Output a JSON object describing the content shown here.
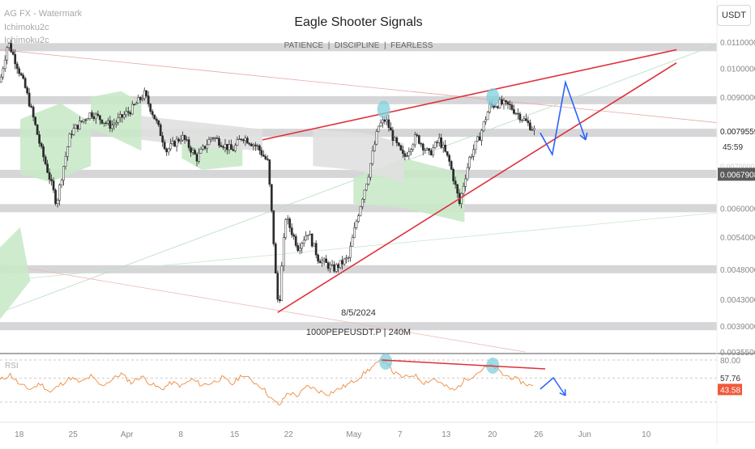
{
  "overlay": {
    "indicators": [
      "AG FX - Watermark",
      "Ichimoku2c",
      "Ichimoku2c"
    ],
    "title": "Eagle Shooter Signals",
    "subtitle": "PATIENCE  |  DISCIPLINE  |  FEARLESS",
    "date_label": "8/5/2024",
    "symbol_label": "1000PEPEUSDT.P | 240M",
    "currency_button": "USDT",
    "countdown": "45:59",
    "rsi_label": "RSI"
  },
  "colors": {
    "candle": "#2b2b2b",
    "trend": "#e0303a",
    "projection": "#2962ff",
    "zone": "#cfcfd1",
    "cloud": "#c9e9c9",
    "cloud_grey": "#e0e0e0",
    "circle": "#7fd0dc",
    "rsi": "#f08a3c",
    "price_tag": "#5b5b5b",
    "rsi_tag": "#f0593a"
  },
  "chart_data": [
    {
      "type": "candlestick",
      "title": "Eagle Shooter Signals",
      "subtitle": "PATIENCE  |  DISCIPLINE  |  FEARLESS",
      "symbol": "1000PEPEUSDT.P | 240M",
      "ylim": [
        0.00355,
        0.0114
      ],
      "y_ticks": [
        "0.0110000",
        "0.0100000",
        "0.0090000",
        "0.0079559",
        "0.0070000",
        "0.0067908",
        "0.0060000",
        "0.0054000",
        "0.0048000",
        "0.0043000",
        "0.0039000",
        "0.0035500"
      ],
      "x_ticks": [
        "18",
        "25",
        "Apr",
        "8",
        "15",
        "22",
        "May",
        "7",
        "13",
        "20",
        "26",
        "Jun",
        "10"
      ],
      "last_price": "0.0079559",
      "marked_price": "0.0067908",
      "zones": [
        0.0108,
        0.0089,
        0.0079,
        0.0068,
        0.006,
        0.0048,
        0.0039
      ],
      "price_path": [
        {
          "t": 0,
          "p": 0.0095
        },
        {
          "t": 0.8,
          "p": 0.011
        },
        {
          "t": 2.5,
          "p": 0.0093
        },
        {
          "t": 4,
          "p": 0.0075
        },
        {
          "t": 5.6,
          "p": 0.0061
        },
        {
          "t": 7,
          "p": 0.0079
        },
        {
          "t": 9,
          "p": 0.0085
        },
        {
          "t": 11,
          "p": 0.0081
        },
        {
          "t": 13,
          "p": 0.0086
        },
        {
          "t": 14.3,
          "p": 0.0091
        },
        {
          "t": 15.5,
          "p": 0.0082
        },
        {
          "t": 16.5,
          "p": 0.0074
        },
        {
          "t": 18,
          "p": 0.0078
        },
        {
          "t": 19.5,
          "p": 0.0072
        },
        {
          "t": 21,
          "p": 0.0078
        },
        {
          "t": 23,
          "p": 0.0074
        },
        {
          "t": 24,
          "p": 0.0078
        },
        {
          "t": 25.5,
          "p": 0.0075
        },
        {
          "t": 26.5,
          "p": 0.0071
        },
        {
          "t": 27.3,
          "p": 0.0047
        },
        {
          "t": 27.6,
          "p": 0.0041
        },
        {
          "t": 28.3,
          "p": 0.0058
        },
        {
          "t": 29.5,
          "p": 0.0052
        },
        {
          "t": 30.5,
          "p": 0.0055
        },
        {
          "t": 31.5,
          "p": 0.005
        },
        {
          "t": 33,
          "p": 0.0048
        },
        {
          "t": 34.5,
          "p": 0.005
        },
        {
          "t": 35.5,
          "p": 0.0059
        },
        {
          "t": 36.5,
          "p": 0.0068
        },
        {
          "t": 37.5,
          "p": 0.0081
        },
        {
          "t": 38.2,
          "p": 0.0083
        },
        {
          "t": 39,
          "p": 0.0077
        },
        {
          "t": 40,
          "p": 0.0072
        },
        {
          "t": 41.2,
          "p": 0.0078
        },
        {
          "t": 42.5,
          "p": 0.0073
        },
        {
          "t": 43.5,
          "p": 0.0077
        },
        {
          "t": 44.5,
          "p": 0.0071
        },
        {
          "t": 45.5,
          "p": 0.0061
        },
        {
          "t": 46.5,
          "p": 0.0072
        },
        {
          "t": 47.5,
          "p": 0.0078
        },
        {
          "t": 48.5,
          "p": 0.0087
        },
        {
          "t": 49.5,
          "p": 0.0088
        },
        {
          "t": 50.5,
          "p": 0.0087
        },
        {
          "t": 51.5,
          "p": 0.0084
        },
        {
          "t": 52.5,
          "p": 0.0081
        },
        {
          "t": 53,
          "p": 0.00795
        }
      ],
      "trendlines": [
        {
          "from": {
            "t": 26,
            "p": 0.0077
          },
          "to": {
            "t": 67,
            "p": 0.0107
          }
        },
        {
          "from": {
            "t": 27.5,
            "p": 0.0041
          },
          "to": {
            "t": 67,
            "p": 0.0102
          }
        }
      ],
      "projection": [
        {
          "t": 53.5,
          "p": 0.0079
        },
        {
          "t": 54.7,
          "p": 0.0073
        },
        {
          "t": 56,
          "p": 0.0095
        },
        {
          "t": 58,
          "p": 0.0077
        }
      ],
      "highlight_points": [
        {
          "t": 38,
          "p": 0.0086
        },
        {
          "t": 48.8,
          "p": 0.009
        }
      ]
    },
    {
      "type": "line",
      "name": "RSI",
      "ylim": [
        20,
        85
      ],
      "levels": [
        "80.00",
        "57.76"
      ],
      "last_value": "43.58",
      "path": [
        {
          "t": 0,
          "v": 55
        },
        {
          "t": 1,
          "v": 62
        },
        {
          "t": 2,
          "v": 49
        },
        {
          "t": 3,
          "v": 44
        },
        {
          "t": 4,
          "v": 51
        },
        {
          "t": 5,
          "v": 40
        },
        {
          "t": 6,
          "v": 50
        },
        {
          "t": 7,
          "v": 58
        },
        {
          "t": 8,
          "v": 52
        },
        {
          "t": 9,
          "v": 60
        },
        {
          "t": 10,
          "v": 48
        },
        {
          "t": 11,
          "v": 55
        },
        {
          "t": 12,
          "v": 63
        },
        {
          "t": 13,
          "v": 52
        },
        {
          "t": 14,
          "v": 60
        },
        {
          "t": 15,
          "v": 50
        },
        {
          "t": 16,
          "v": 44
        },
        {
          "t": 17,
          "v": 52
        },
        {
          "t": 18,
          "v": 48
        },
        {
          "t": 19,
          "v": 56
        },
        {
          "t": 20,
          "v": 49
        },
        {
          "t": 21,
          "v": 52
        },
        {
          "t": 22,
          "v": 58
        },
        {
          "t": 23,
          "v": 50
        },
        {
          "t": 24,
          "v": 62
        },
        {
          "t": 25,
          "v": 54
        },
        {
          "t": 26,
          "v": 46
        },
        {
          "t": 27,
          "v": 30
        },
        {
          "t": 27.7,
          "v": 24
        },
        {
          "t": 28.5,
          "v": 40
        },
        {
          "t": 29.5,
          "v": 36
        },
        {
          "t": 30.5,
          "v": 48
        },
        {
          "t": 31.5,
          "v": 42
        },
        {
          "t": 32.5,
          "v": 38
        },
        {
          "t": 33.5,
          "v": 44
        },
        {
          "t": 34.5,
          "v": 50
        },
        {
          "t": 35.5,
          "v": 58
        },
        {
          "t": 36.5,
          "v": 68
        },
        {
          "t": 37.5,
          "v": 77
        },
        {
          "t": 38.2,
          "v": 80
        },
        {
          "t": 39,
          "v": 64
        },
        {
          "t": 40,
          "v": 58
        },
        {
          "t": 41,
          "v": 62
        },
        {
          "t": 42,
          "v": 52
        },
        {
          "t": 43,
          "v": 57
        },
        {
          "t": 44,
          "v": 48
        },
        {
          "t": 45,
          "v": 42
        },
        {
          "t": 46,
          "v": 55
        },
        {
          "t": 47,
          "v": 62
        },
        {
          "t": 48,
          "v": 70
        },
        {
          "t": 48.8,
          "v": 73
        },
        {
          "t": 49.8,
          "v": 62
        },
        {
          "t": 50.8,
          "v": 58
        },
        {
          "t": 51.8,
          "v": 52
        },
        {
          "t": 52.8,
          "v": 47
        },
        {
          "t": 53,
          "v": 43.58
        }
      ],
      "trendline": [
        {
          "t": 37.8,
          "v": 80
        },
        {
          "t": 54,
          "v": 69
        }
      ],
      "projection": [
        {
          "t": 53.5,
          "v": 44
        },
        {
          "t": 54.8,
          "v": 58
        },
        {
          "t": 56,
          "v": 36
        }
      ],
      "highlight_points": [
        {
          "t": 38.2,
          "v": 78
        },
        {
          "t": 48.8,
          "v": 73
        }
      ]
    }
  ]
}
